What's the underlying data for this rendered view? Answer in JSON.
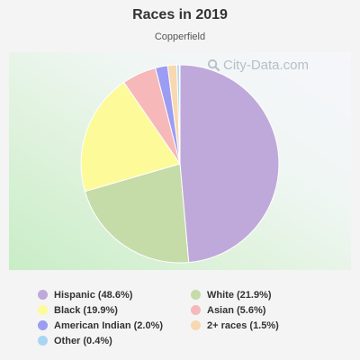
{
  "title": "Races in 2019",
  "subtitle": "Copperfield",
  "watermark": "City-Data.com",
  "chart_data": {
    "type": "pie",
    "title": "Races in 2019",
    "subtitle": "Copperfield",
    "slices": [
      {
        "label": "Hispanic",
        "value": 48.6,
        "legend": "Hispanic (48.6%)",
        "color": "#bfa9da"
      },
      {
        "label": "White",
        "value": 21.9,
        "legend": "White (21.9%)",
        "color": "#c5dba8"
      },
      {
        "label": "Black",
        "value": 19.9,
        "legend": "Black (19.9%)",
        "color": "#fdfa9a"
      },
      {
        "label": "Asian",
        "value": 5.6,
        "legend": "Asian (5.6%)",
        "color": "#f6b8b8"
      },
      {
        "label": "American Indian",
        "value": 2.0,
        "legend": "American Indian (2.0%)",
        "color": "#9c9cf2"
      },
      {
        "label": "2+ races",
        "value": 1.5,
        "legend": "2+ races (1.5%)",
        "color": "#f8d8b0"
      },
      {
        "label": "Other",
        "value": 0.4,
        "legend": "Other (0.4%)",
        "color": "#a9d5f5"
      }
    ],
    "slice_order": [
      "Hispanic",
      "White",
      "Black",
      "Asian",
      "American Indian",
      "2+ races",
      "Other"
    ],
    "legend_order": [
      "Hispanic",
      "White",
      "Black",
      "Asian",
      "American Indian",
      "2+ races",
      "Other"
    ],
    "legend_position": "bottom"
  }
}
